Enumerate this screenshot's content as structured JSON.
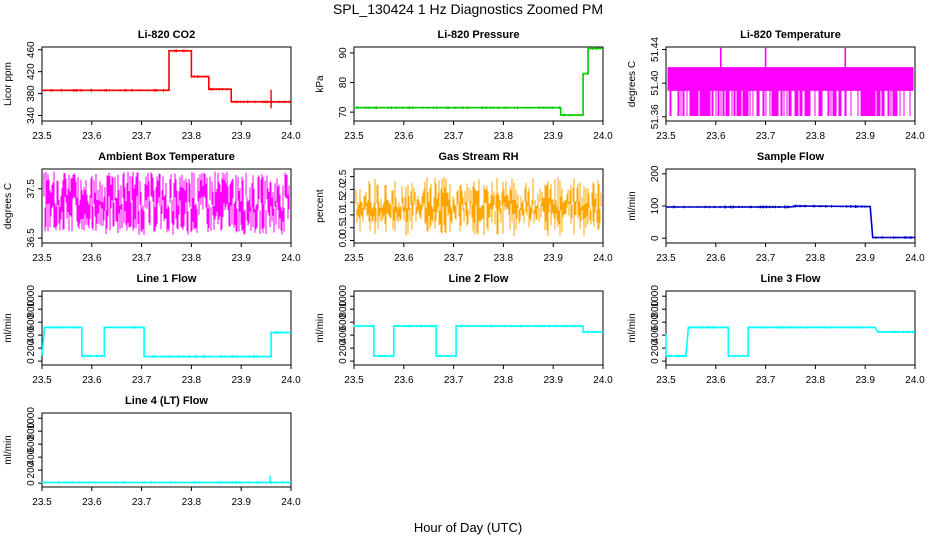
{
  "figure": {
    "title": "SPL_130424  1 Hz Diagnostics Zoomed PM",
    "xlabel": "Hour of Day (UTC)"
  },
  "chart_data": [
    {
      "type": "line",
      "title": "Li-820 CO2",
      "ylabel": "Licor ppm",
      "color": "#ff0000",
      "xlim": [
        23.5,
        24.0
      ],
      "ylim": [
        330,
        465
      ],
      "xticks": [
        "23.5",
        "23.6",
        "23.7",
        "23.8",
        "23.9",
        "24.0"
      ],
      "yticks": [
        340,
        380,
        420,
        460
      ],
      "x": [
        23.5,
        23.755,
        23.755,
        23.8,
        23.8,
        23.835,
        23.835,
        23.88,
        23.88,
        24.0
      ],
      "y": [
        386,
        386,
        458,
        458,
        411,
        411,
        388,
        388,
        365,
        365
      ],
      "spikes": [
        {
          "x": 23.96,
          "low": 353,
          "high": 387
        }
      ]
    },
    {
      "type": "line",
      "title": "Li-820 Pressure",
      "ylabel": "kPa",
      "color": "#00cc00",
      "xlim": [
        23.5,
        24.0
      ],
      "ylim": [
        67,
        92
      ],
      "xticks": [
        "23.5",
        "23.6",
        "23.7",
        "23.8",
        "23.9",
        "24.0"
      ],
      "yticks": [
        70,
        80,
        90
      ],
      "x": [
        23.5,
        23.915,
        23.915,
        23.96,
        23.96,
        23.97,
        23.97,
        24.0
      ],
      "y": [
        71.5,
        71.5,
        69.0,
        69.0,
        83.0,
        83.0,
        91.5,
        91.5
      ]
    },
    {
      "type": "band",
      "title": "Li-820 Temperature",
      "ylabel": "degrees C",
      "color": "#ff00ff",
      "xlim": [
        23.5,
        24.0
      ],
      "ylim": [
        51.355,
        51.443
      ],
      "xticks": [
        "23.5",
        "23.6",
        "23.7",
        "23.8",
        "23.9",
        "24.0"
      ],
      "yticks": [
        "51.36",
        "51.40",
        "51.44"
      ],
      "band": [
        51.361,
        51.419
      ],
      "band_core": [
        51.391,
        51.419
      ],
      "spikes_x": [
        23.61,
        23.7,
        23.86
      ],
      "spike_top": 51.442
    },
    {
      "type": "noise",
      "title": "Ambient Box Temperature",
      "ylabel": "degrees C",
      "color": "#ff00ff",
      "xlim": [
        23.5,
        24.0
      ],
      "ylim": [
        36.4,
        37.9
      ],
      "xticks": [
        "23.5",
        "23.6",
        "23.7",
        "23.8",
        "23.9",
        "24.0"
      ],
      "yticks": [
        "36.5",
        "37.5"
      ],
      "range": [
        36.6,
        37.85
      ],
      "core": [
        36.8,
        37.6
      ]
    },
    {
      "type": "noise",
      "title": "Gas Stream RH",
      "ylabel": "percent",
      "color": "#ffa500",
      "xlim": [
        23.5,
        24.0
      ],
      "ylim": [
        -0.1,
        2.8
      ],
      "xticks": [
        "23.5",
        "23.6",
        "23.7",
        "23.8",
        "23.9",
        "24.0"
      ],
      "yticks": [
        "0.0",
        "0.5",
        "1.0",
        "1.5",
        "2.0",
        "2.5"
      ],
      "range": [
        0.15,
        2.5
      ],
      "core": [
        0.9,
        1.8
      ]
    },
    {
      "type": "line",
      "title": "Sample Flow",
      "ylabel": "ml/min",
      "color": "#0000cc",
      "xlim": [
        23.5,
        24.0
      ],
      "ylim": [
        -15,
        215
      ],
      "xticks": [
        "23.5",
        "23.6",
        "23.7",
        "23.8",
        "23.9",
        "24.0"
      ],
      "yticks": [
        0,
        100,
        200
      ],
      "x": [
        23.5,
        23.75,
        23.76,
        23.91,
        23.915,
        24.0
      ],
      "y": [
        97,
        97,
        100,
        98,
        2,
        2
      ]
    },
    {
      "type": "line",
      "title": "Line 1 Flow",
      "ylabel": "ml/min",
      "color": "#00ffff",
      "xlim": [
        23.5,
        24.0
      ],
      "ylim": [
        -60,
        1080
      ],
      "xticks": [
        "23.5",
        "23.6",
        "23.7",
        "23.8",
        "23.9",
        "24.0"
      ],
      "yticks": [
        0,
        200,
        400,
        600,
        800,
        1000
      ],
      "x": [
        23.5,
        23.505,
        23.58,
        23.58,
        23.625,
        23.625,
        23.705,
        23.705,
        23.96,
        23.96,
        24.0
      ],
      "y": [
        90,
        520,
        520,
        80,
        80,
        520,
        520,
        70,
        70,
        440,
        440
      ]
    },
    {
      "type": "line",
      "title": "Line 2 Flow",
      "ylabel": "ml/min",
      "color": "#00ffff",
      "xlim": [
        23.5,
        24.0
      ],
      "ylim": [
        -60,
        1080
      ],
      "xticks": [
        "23.5",
        "23.6",
        "23.7",
        "23.8",
        "23.9",
        "24.0"
      ],
      "yticks": [
        0,
        200,
        400,
        600,
        800,
        1000
      ],
      "x": [
        23.5,
        23.54,
        23.54,
        23.58,
        23.58,
        23.665,
        23.665,
        23.705,
        23.705,
        23.96,
        23.96,
        24.0
      ],
      "y": [
        540,
        540,
        80,
        80,
        540,
        540,
        80,
        80,
        540,
        540,
        450,
        450
      ]
    },
    {
      "type": "line",
      "title": "Line 3 Flow",
      "ylabel": "ml/min",
      "color": "#00ffff",
      "xlim": [
        23.5,
        24.0
      ],
      "ylim": [
        -60,
        1080
      ],
      "xticks": [
        "23.5",
        "23.6",
        "23.7",
        "23.8",
        "23.9",
        "24.0"
      ],
      "yticks": [
        0,
        200,
        400,
        600,
        800,
        1000
      ],
      "x": [
        23.5,
        23.5,
        23.505,
        23.54,
        23.545,
        23.625,
        23.625,
        23.665,
        23.665,
        23.92,
        23.925,
        24.0
      ],
      "y": [
        420,
        80,
        80,
        80,
        520,
        520,
        80,
        80,
        520,
        520,
        450,
        450
      ]
    },
    {
      "type": "line",
      "title": "Line 4 (LT) Flow",
      "ylabel": "ml/min",
      "color": "#00ffff",
      "xlim": [
        23.5,
        24.0
      ],
      "ylim": [
        -60,
        1080
      ],
      "xticks": [
        "23.5",
        "23.6",
        "23.7",
        "23.8",
        "23.9",
        "24.0"
      ],
      "yticks": [
        0,
        200,
        400,
        600,
        800,
        1000
      ],
      "x": [
        23.5,
        24.0
      ],
      "y": [
        10,
        10
      ],
      "spikes": [
        {
          "x": 23.958,
          "low": 10,
          "high": 120
        }
      ]
    }
  ]
}
